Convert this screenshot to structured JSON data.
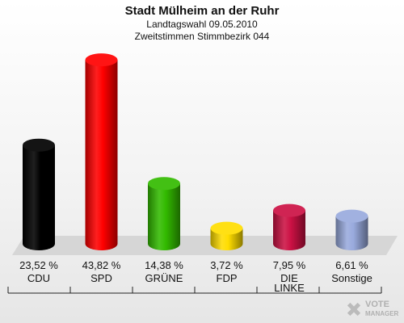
{
  "header": {
    "title": "Stadt Mülheim an der Ruhr",
    "subtitle1": "Landtagswahl 09.05.2010",
    "subtitle2": "Zweitstimmen Stimmbezirk 044"
  },
  "watermark": {
    "text1": "VOTE",
    "text2": "MANAGER"
  },
  "chart_data": {
    "type": "bar",
    "title": "Stadt Mülheim an der Ruhr",
    "subtitle": "Landtagswahl 09.05.2010 — Zweitstimmen Stimmbezirk 044",
    "unit": "%",
    "categories": [
      "CDU",
      "SPD",
      "GRÜNE",
      "FDP",
      "DIE LINKE",
      "Sonstige"
    ],
    "category_lines": [
      [
        "CDU"
      ],
      [
        "SPD"
      ],
      [
        "GRÜNE"
      ],
      [
        "FDP"
      ],
      [
        "DIE",
        "LINKE"
      ],
      [
        "Sonstige"
      ]
    ],
    "values": [
      23.52,
      43.82,
      14.38,
      3.72,
      7.95,
      6.61
    ],
    "value_labels": [
      "23,52 %",
      "43,82 %",
      "14,38 %",
      "3,72 %",
      "7,95 %",
      "6,61 %"
    ],
    "colors": [
      "#000000",
      "#ff0000",
      "#33bb00",
      "#ffdd00",
      "#cc1144",
      "#99aadd"
    ],
    "ylim": [
      0,
      45
    ],
    "grid": false,
    "legend": "none"
  }
}
